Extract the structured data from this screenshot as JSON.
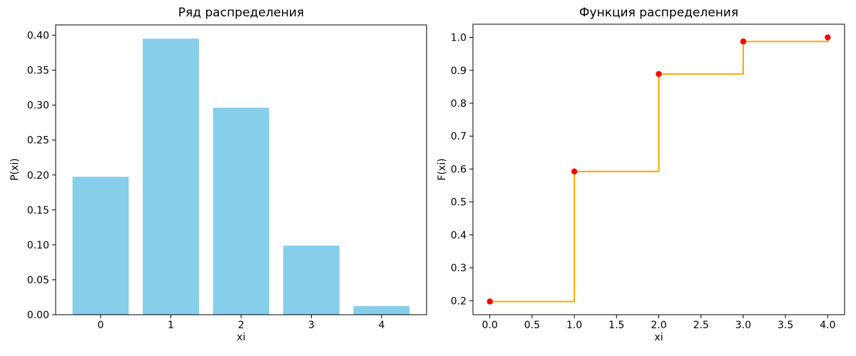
{
  "figure": {
    "background": "#ffffff",
    "frame_color": "#000000",
    "text_color": "#000000"
  },
  "chart_data": [
    {
      "type": "bar",
      "title": "Ряд распределения",
      "xlabel": "xi",
      "ylabel": "P(xi)",
      "categories": [
        0,
        1,
        2,
        3,
        4
      ],
      "values": [
        0.1975,
        0.3951,
        0.2963,
        0.0988,
        0.0123
      ],
      "bar_color": "#87CEEB",
      "bar_width": 0.8,
      "xlim": [
        -0.64,
        4.64
      ],
      "ylim": [
        0,
        0.4148
      ],
      "xticks": [
        0,
        1,
        2,
        3,
        4
      ],
      "xtick_labels": [
        "0",
        "1",
        "2",
        "3",
        "4"
      ],
      "yticks": [
        0,
        0.05,
        0.1,
        0.15,
        0.2,
        0.25,
        0.3,
        0.35,
        0.4
      ],
      "ytick_labels": [
        "0.00",
        "0.05",
        "0.10",
        "0.15",
        "0.20",
        "0.25",
        "0.30",
        "0.35",
        "0.40"
      ],
      "grid": false,
      "legend": null
    },
    {
      "type": "step",
      "title": "Функция распределения",
      "xlabel": "xi",
      "ylabel": "F(xi)",
      "x": [
        0,
        1,
        2,
        3,
        4
      ],
      "y": [
        0.1975,
        0.5926,
        0.8889,
        0.9877,
        1.0
      ],
      "step_where": "post",
      "line_color": "#FFA500",
      "marker_color": "#FF0000",
      "marker": "circle",
      "xlim": [
        -0.2,
        4.2
      ],
      "ylim": [
        0.1574,
        1.0401
      ],
      "xticks": [
        0,
        0.5,
        1,
        1.5,
        2,
        2.5,
        3,
        3.5,
        4
      ],
      "xtick_labels": [
        "0.0",
        "0.5",
        "1.0",
        "1.5",
        "2.0",
        "2.5",
        "3.0",
        "3.5",
        "4.0"
      ],
      "yticks": [
        0.2,
        0.3,
        0.4,
        0.5,
        0.6,
        0.7,
        0.8,
        0.9,
        1.0
      ],
      "ytick_labels": [
        "0.2",
        "0.3",
        "0.4",
        "0.5",
        "0.6",
        "0.7",
        "0.8",
        "0.9",
        "1.0"
      ],
      "grid": false,
      "legend": null
    }
  ]
}
